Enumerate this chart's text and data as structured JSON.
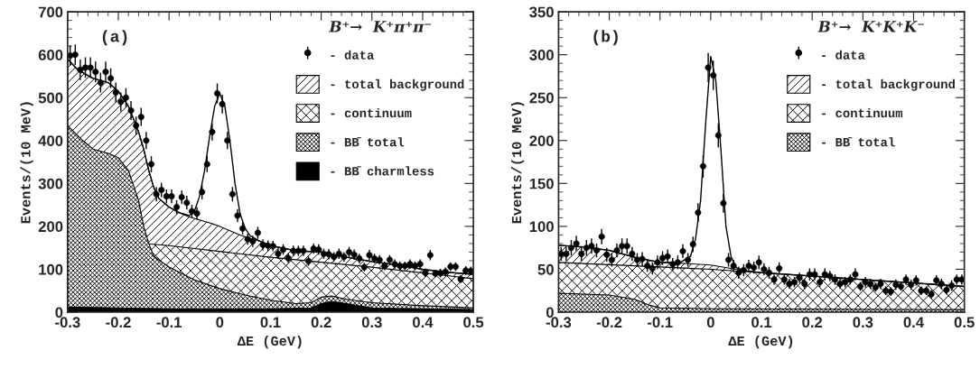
{
  "chart_data": [
    {
      "type": "scatter",
      "xlabel": "ΔE (GeV)",
      "ylabel": "Events/(10 MeV)",
      "legend_title": "B⁺→  K⁺π⁺π⁻",
      "annotations": [
        "(a)"
      ],
      "xlim": [
        -0.3,
        0.5
      ],
      "xticks": [
        -0.3,
        -0.2,
        -0.1,
        0,
        0.1,
        0.2,
        0.3,
        0.4,
        0.5
      ],
      "ylim": [
        0,
        700
      ],
      "yticks": [
        0,
        100,
        200,
        300,
        400,
        500,
        600,
        700
      ],
      "grid": false,
      "legend": "top right",
      "series": [
        {
          "type": "area",
          "name": "- total background",
          "color": "#000000",
          "x": [
            -0.3,
            -0.28,
            -0.25,
            -0.22,
            -0.2,
            -0.18,
            -0.16,
            -0.15,
            -0.14,
            -0.13,
            -0.12,
            -0.1,
            -0.08,
            -0.06,
            -0.04,
            -0.02,
            0,
            0.02,
            0.04,
            0.06,
            0.08,
            0.1,
            0.15,
            0.2,
            0.25,
            0.3,
            0.35,
            0.4,
            0.45,
            0.5
          ],
          "values": [
            590,
            565,
            545,
            535,
            515,
            480,
            420,
            380,
            330,
            290,
            265,
            245,
            232,
            222,
            215,
            208,
            200,
            190,
            180,
            172,
            165,
            155,
            143,
            140,
            128,
            118,
            110,
            100,
            93,
            88
          ]
        },
        {
          "type": "area",
          "name": "- continuum",
          "color": "#000000",
          "x": [
            -0.3,
            -0.1,
            0.1,
            0.3,
            0.5
          ],
          "values": [
            175,
            155,
            128,
            105,
            78
          ]
        },
        {
          "type": "area",
          "name": "- BB̄ total",
          "color": "#000000",
          "x": [
            -0.3,
            -0.27,
            -0.25,
            -0.22,
            -0.2,
            -0.18,
            -0.16,
            -0.15,
            -0.14,
            -0.13,
            -0.1,
            -0.05,
            0,
            0.05,
            0.1,
            0.15,
            0.18,
            0.2,
            0.22,
            0.25,
            0.3,
            0.4,
            0.5
          ],
          "values": [
            435,
            400,
            380,
            370,
            360,
            330,
            260,
            200,
            160,
            130,
            105,
            75,
            55,
            40,
            28,
            20,
            22,
            35,
            38,
            30,
            22,
            15,
            10
          ]
        },
        {
          "type": "area",
          "name": "- BB̄ charmless",
          "color": "#000000",
          "x": [
            -0.3,
            -0.2,
            -0.1,
            0,
            0.1,
            0.18,
            0.2,
            0.22,
            0.25,
            0.3,
            0.4,
            0.5
          ],
          "values": [
            12,
            10,
            8,
            8,
            8,
            10,
            20,
            25,
            20,
            10,
            8,
            6
          ]
        },
        {
          "type": "line",
          "color": "#000000",
          "x": [
            -0.3,
            -0.28,
            -0.25,
            -0.22,
            -0.2,
            -0.18,
            -0.16,
            -0.15,
            -0.14,
            -0.13,
            -0.12,
            -0.1,
            -0.08,
            -0.06,
            -0.05,
            -0.04,
            -0.03,
            -0.02,
            -0.01,
            0,
            0.01,
            0.02,
            0.03,
            0.04,
            0.05,
            0.06,
            0.08,
            0.1,
            0.15,
            0.2,
            0.25,
            0.3,
            0.35,
            0.4,
            0.45,
            0.5
          ],
          "values": [
            590,
            565,
            545,
            535,
            515,
            480,
            420,
            380,
            330,
            290,
            265,
            245,
            232,
            225,
            235,
            270,
            330,
            410,
            480,
            510,
            480,
            400,
            300,
            230,
            195,
            178,
            165,
            155,
            143,
            140,
            128,
            118,
            110,
            100,
            93,
            88
          ]
        },
        {
          "name": "- data",
          "color": "#000000",
          "marker": "circle",
          "x": [
            -0.295,
            -0.285,
            -0.275,
            -0.265,
            -0.255,
            -0.245,
            -0.235,
            -0.225,
            -0.215,
            -0.205,
            -0.195,
            -0.185,
            -0.175,
            -0.165,
            -0.155,
            -0.145,
            -0.135,
            -0.125,
            -0.115,
            -0.105,
            -0.095,
            -0.085,
            -0.075,
            -0.065,
            -0.055,
            -0.045,
            -0.035,
            -0.025,
            -0.015,
            -0.005,
            0.005,
            0.015,
            0.025,
            0.035,
            0.045,
            0.055,
            0.065,
            0.075,
            0.085,
            0.095,
            0.105,
            0.115,
            0.125,
            0.135,
            0.145,
            0.155,
            0.165,
            0.175,
            0.185,
            0.195,
            0.205,
            0.215,
            0.225,
            0.235,
            0.245,
            0.255,
            0.265,
            0.275,
            0.285,
            0.295,
            0.305,
            0.315,
            0.325,
            0.335,
            0.345,
            0.355,
            0.365,
            0.375,
            0.385,
            0.395,
            0.405,
            0.415,
            0.425,
            0.435,
            0.445,
            0.455,
            0.465,
            0.475,
            0.485,
            0.495
          ],
          "values": [
            598,
            600,
            565,
            570,
            570,
            560,
            535,
            560,
            545,
            512,
            490,
            500,
            470,
            435,
            455,
            400,
            345,
            275,
            285,
            270,
            270,
            245,
            268,
            255,
            235,
            230,
            280,
            345,
            420,
            510,
            485,
            400,
            275,
            225,
            195,
            170,
            165,
            185,
            157,
            155,
            154,
            136,
            146,
            126,
            143,
            143,
            143,
            119,
            148,
            146,
            136,
            135,
            129,
            136,
            129,
            140,
            134,
            125,
            105,
            133,
            125,
            122,
            108,
            122,
            112,
            108,
            108,
            112,
            108,
            112,
            92,
            133,
            90,
            91,
            94,
            106,
            106,
            77,
            97,
            96
          ],
          "errors": [
            24,
            24,
            24,
            24,
            24,
            24,
            23,
            24,
            23,
            23,
            22,
            22,
            22,
            21,
            21,
            20,
            19,
            17,
            17,
            16,
            16,
            16,
            16,
            16,
            15,
            15,
            17,
            19,
            20,
            23,
            22,
            20,
            17,
            15,
            14,
            13,
            13,
            14,
            13,
            12,
            12,
            12,
            12,
            11,
            12,
            12,
            12,
            11,
            12,
            12,
            12,
            12,
            11,
            12,
            11,
            12,
            12,
            11,
            10,
            12,
            11,
            11,
            10,
            11,
            11,
            10,
            10,
            11,
            10,
            11,
            10,
            12,
            9,
            10,
            10,
            10,
            10,
            9,
            10,
            10
          ]
        }
      ]
    },
    {
      "type": "scatter",
      "xlabel": "ΔE (GeV)",
      "ylabel": "Events/(10 MeV)",
      "legend_title": "B⁺→  K⁺K⁺K⁻",
      "annotations": [
        "(b)"
      ],
      "xlim": [
        -0.3,
        0.5
      ],
      "xticks": [
        -0.3,
        -0.2,
        -0.1,
        0,
        0.1,
        0.2,
        0.3,
        0.4,
        0.5
      ],
      "ylim": [
        0,
        350
      ],
      "yticks": [
        0,
        50,
        100,
        150,
        200,
        250,
        300,
        350
      ],
      "grid": false,
      "legend": "top right",
      "series": [
        {
          "type": "area",
          "name": "- total background",
          "color": "#000000",
          "x": [
            -0.3,
            -0.25,
            -0.2,
            -0.15,
            -0.1,
            -0.06,
            0,
            0.05,
            0.1,
            0.2,
            0.3,
            0.4,
            0.5
          ],
          "values": [
            78,
            76,
            72,
            64,
            58,
            57,
            55,
            50,
            46,
            42,
            38,
            34,
            30
          ]
        },
        {
          "type": "area",
          "name": "- continuum",
          "color": "#000000",
          "x": [
            -0.3,
            0,
            0.1,
            0.3,
            0.5
          ],
          "values": [
            58,
            50,
            46,
            38,
            30
          ]
        },
        {
          "type": "area",
          "name": "- BB̄ total",
          "color": "#000000",
          "x": [
            -0.3,
            -0.2,
            -0.15,
            -0.12,
            -0.1,
            0,
            0.5
          ],
          "values": [
            22,
            20,
            15,
            8,
            5,
            4,
            3
          ]
        },
        {
          "type": "line",
          "color": "#000000",
          "x": [
            -0.3,
            -0.25,
            -0.2,
            -0.15,
            -0.1,
            -0.06,
            -0.04,
            -0.03,
            -0.02,
            -0.01,
            0,
            0.01,
            0.02,
            0.03,
            0.04,
            0.05,
            0.07,
            0.1,
            0.2,
            0.3,
            0.4,
            0.5
          ],
          "values": [
            78,
            76,
            72,
            64,
            58,
            58,
            65,
            85,
            130,
            220,
            298,
            270,
            190,
            100,
            65,
            52,
            48,
            46,
            42,
            38,
            34,
            30
          ]
        },
        {
          "name": "- data",
          "color": "#000000",
          "marker": "circle",
          "x": [
            -0.295,
            -0.285,
            -0.275,
            -0.265,
            -0.255,
            -0.245,
            -0.235,
            -0.225,
            -0.215,
            -0.205,
            -0.195,
            -0.185,
            -0.175,
            -0.165,
            -0.155,
            -0.145,
            -0.135,
            -0.125,
            -0.115,
            -0.105,
            -0.095,
            -0.085,
            -0.075,
            -0.065,
            -0.055,
            -0.045,
            -0.035,
            -0.025,
            -0.015,
            -0.005,
            0.005,
            0.015,
            0.025,
            0.035,
            0.045,
            0.055,
            0.065,
            0.075,
            0.085,
            0.095,
            0.105,
            0.115,
            0.125,
            0.135,
            0.145,
            0.155,
            0.165,
            0.175,
            0.185,
            0.195,
            0.205,
            0.215,
            0.225,
            0.235,
            0.245,
            0.255,
            0.265,
            0.275,
            0.285,
            0.295,
            0.305,
            0.315,
            0.325,
            0.335,
            0.345,
            0.355,
            0.365,
            0.375,
            0.385,
            0.395,
            0.405,
            0.415,
            0.425,
            0.435,
            0.445,
            0.455,
            0.465,
            0.475,
            0.485,
            0.495
          ],
          "values": [
            68,
            68,
            75,
            80,
            68,
            75,
            77,
            72,
            88,
            67,
            61,
            72,
            77,
            77,
            68,
            61,
            62,
            54,
            51,
            58,
            63,
            65,
            56,
            58,
            71,
            61,
            79,
            116,
            170,
            285,
            276,
            206,
            127,
            61,
            54,
            46,
            49,
            54,
            52,
            58,
            50,
            46,
            38,
            51,
            38,
            33,
            35,
            40,
            33,
            44,
            44,
            35,
            44,
            42,
            38,
            33,
            35,
            38,
            44,
            30,
            35,
            33,
            29,
            33,
            25,
            24,
            32,
            30,
            38,
            32,
            37,
            25,
            25,
            21,
            37,
            33,
            26,
            31,
            38,
            38
          ],
          "errors": [
            8,
            8,
            9,
            9,
            8,
            9,
            9,
            8,
            9,
            8,
            8,
            8,
            9,
            9,
            8,
            8,
            8,
            7,
            7,
            8,
            8,
            8,
            7,
            8,
            8,
            8,
            9,
            11,
            13,
            17,
            17,
            14,
            11,
            8,
            7,
            7,
            7,
            7,
            7,
            8,
            7,
            7,
            6,
            7,
            6,
            6,
            6,
            6,
            6,
            7,
            7,
            6,
            7,
            6,
            6,
            6,
            6,
            6,
            7,
            5,
            6,
            6,
            5,
            6,
            5,
            5,
            6,
            5,
            6,
            6,
            6,
            5,
            5,
            5,
            6,
            6,
            5,
            6,
            6,
            6
          ]
        }
      ]
    }
  ]
}
